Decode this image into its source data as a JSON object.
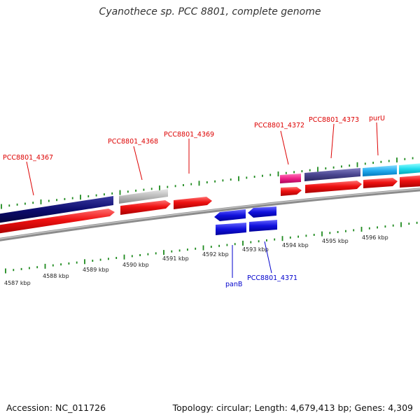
{
  "title": "Cyanothece sp. PCC 8801, complete genome",
  "footer": {
    "accession": "Accession: NC_011726",
    "summary": "Topology: circular; Length: 4,679,413 bp; Genes: 4,309"
  },
  "colors": {
    "backbone": "#8c8c8c",
    "tick": "#1e8a1e",
    "cds_strand": "#ee1111",
    "label_top": "#dd0000",
    "label_bottom": "#0000cc"
  },
  "kbp_labels": [
    "4587 kbp",
    "4588 kbp",
    "4589 kbp",
    "4590 kbp",
    "4591 kbp",
    "4592 kbp",
    "4593 kbp",
    "4594 kbp",
    "4595 kbp",
    "4596 kbp"
  ],
  "genes_top": [
    {
      "id": "PCC8801_4367",
      "label": "PCC8801_4367",
      "color": "#0c0c6e"
    },
    {
      "id": "PCC8801_4368",
      "label": "PCC8801_4368",
      "color": "#b8b8b8"
    },
    {
      "id": "PCC8801_4369",
      "label": "PCC8801_4369",
      "color": "#ee1111"
    },
    {
      "id": "PCC8801_4372",
      "label": "PCC8801_4372",
      "color": "#ee2288"
    },
    {
      "id": "PCC8801_4373",
      "label": "PCC8801_4373",
      "color": "#4a4690"
    },
    {
      "id": "purU",
      "label": "purU",
      "color": "#22aaee"
    },
    {
      "id": "next",
      "label": "",
      "color": "#22ddee"
    }
  ],
  "genes_bottom": [
    {
      "id": "panB",
      "label": "panB",
      "color": "#1111dd"
    },
    {
      "id": "PCC8801_4371",
      "label": "PCC8801_4371",
      "color": "#1111dd"
    }
  ]
}
